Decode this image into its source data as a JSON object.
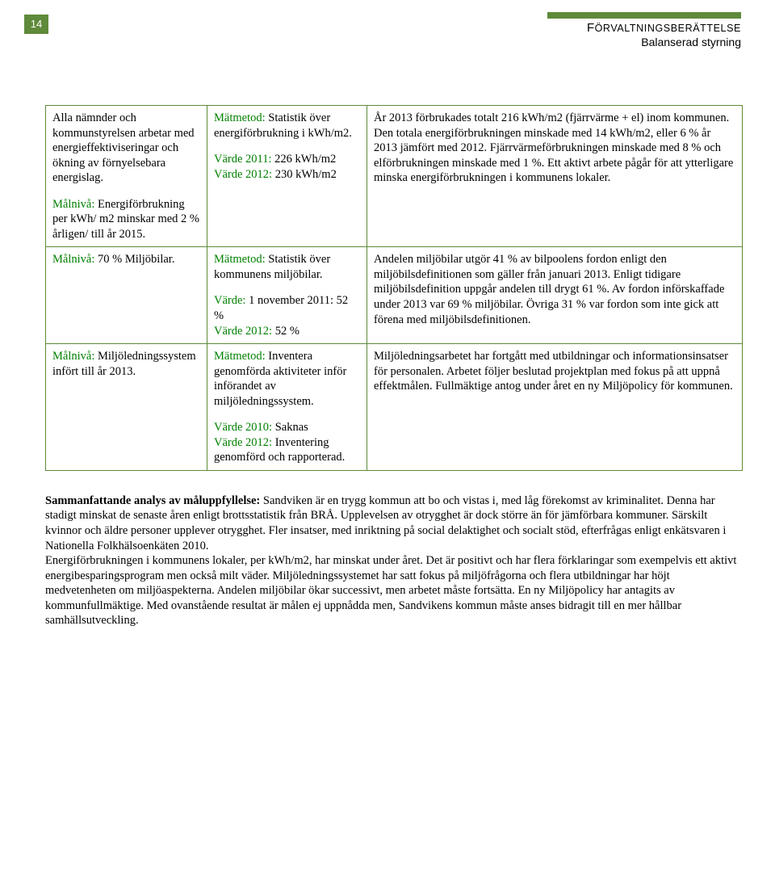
{
  "colors": {
    "accent": "#5f8a3a",
    "green_text": "#008000",
    "text": "#000000",
    "background": "#ffffff"
  },
  "page_number": "14",
  "header": {
    "title_first_cap": "F",
    "title_rest": "ÖRVALTNINGSBERÄTTELSE",
    "subtitle": "Balanserad styrning"
  },
  "rows": [
    {
      "col1": {
        "para1": "Alla nämnder och kommunstyrelsen arbetar med energieffektiviseringar och ökning av förnyelsebara energislag.",
        "goal_label": "Målnivå:",
        "goal_text": " Energiförbrukning per kWh/ m2 minskar med 2 % årligen/ till år 2015."
      },
      "col2": {
        "metric_label": "Mätmetod:",
        "metric_text": " Statistik över energiförbrukning i kWh/m2.",
        "v1_label": "Värde 2011:",
        "v1_text": " 226 kWh/m2",
        "v2_label": "Värde 2012:",
        "v2_text": " 230 kWh/m2"
      },
      "col3": {
        "text": "År 2013 förbrukades totalt 216 kWh/m2 (fjärrvärme + el) inom kommunen. Den totala energiförbrukningen minskade med 14 kWh/m2, eller 6 % år 2013 jämfört med 2012. Fjärrvärmeförbrukningen minskade med 8 % och elförbrukningen minskade med 1 %. Ett aktivt arbete pågår för att ytterligare minska energiförbrukningen i kommunens lokaler."
      }
    },
    {
      "col1": {
        "goal_label": "Målnivå:",
        "goal_text": " 70 % Miljöbilar."
      },
      "col2": {
        "metric_label": "Mätmetod:",
        "metric_text": " Statistik över kommunens miljöbilar.",
        "v1_label": "Värde:",
        "v1_text": " 1 november 2011: 52 %",
        "v2_label": "Värde 2012:",
        "v2_text": " 52 %"
      },
      "col3": {
        "text": "Andelen miljöbilar utgör 41 % av bilpoolens fordon enligt den miljöbilsdefinitionen som gäller från januari 2013. Enligt tidigare miljöbilsdefinition uppgår andelen till drygt 61 %. Av fordon införskaffade under 2013 var 69 % miljöbilar. Övriga 31 % var fordon som inte gick att förena med miljöbilsdefinitionen."
      }
    },
    {
      "col1": {
        "goal_label": "Målnivå:",
        "goal_text": " Miljöledningssystem infört till år 2013."
      },
      "col2": {
        "metric_label": "Mätmetod:",
        "metric_text": " Inventera genomförda aktiviteter inför införandet av miljöledningssystem.",
        "v1_label": "Värde 2010:",
        "v1_text": " Saknas",
        "v2_label": "Värde 2012:",
        "v2_text": " Inventering genomförd och rapporterad."
      },
      "col3": {
        "text": "Miljöledningsarbetet har fortgått med utbildningar och informationsinsatser för personalen. Arbetet följer beslutad projektplan med fokus på att uppnå effektmålen.  Fullmäktige antog under året en ny Miljöpolicy för kommunen."
      }
    }
  ],
  "summary": {
    "lead_label": "Sammanfattande analys av måluppfyllelse:",
    "lead_text": " Sandviken är en trygg kommun att bo och vistas i, med låg förekomst av kriminalitet. Denna har stadigt minskat de senaste åren enligt brottsstatistik från BRÅ. Upplevelsen av otrygghet är dock större än för jämförbara kommuner. Särskilt kvinnor och äldre personer upplever otrygghet. Fler insatser, med inriktning på social delaktighet och socialt stöd, efterfrågas enligt enkätsvaren i Nationella Folkhälsoenkäten 2010.",
    "para2": "Energiförbrukningen i kommunens lokaler, per kWh/m2, har minskat under året. Det är positivt och har flera förklaringar som exempelvis ett aktivt energibesparingsprogram men också milt väder. Miljöledningssystemet har satt fokus på miljöfrågorna och flera utbildningar har höjt medvetenheten om miljöaspekterna. Andelen miljöbilar ökar successivt, men arbetet måste fortsätta. En ny Miljöpolicy har antagits av kommunfullmäktige. Med ovanstående resultat är målen ej uppnådda men, Sandvikens kommun måste anses bidragit till en mer hållbar samhällsutveckling."
  }
}
